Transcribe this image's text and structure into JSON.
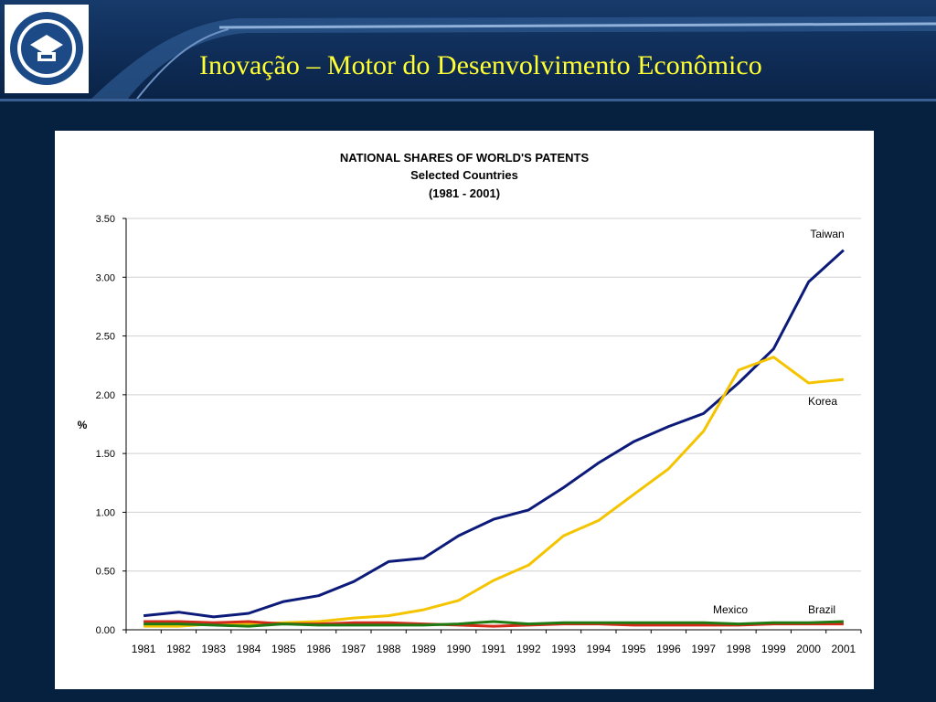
{
  "slide": {
    "title": "Inovação – Motor do Desenvolvimento Econômico"
  },
  "chart_data": {
    "type": "line",
    "title": "NATIONAL SHARES OF WORLD'S PATENTS",
    "subtitle": "Selected Countries",
    "subtitle2": "(1981 - 2001)",
    "xlabel": "",
    "ylabel": "%",
    "ylim": [
      0,
      3.5
    ],
    "yticks": [
      "0.00",
      "0.50",
      "1.00",
      "1.50",
      "2.00",
      "2.50",
      "3.00",
      "3.50"
    ],
    "x": [
      "1981",
      "1982",
      "1983",
      "1984",
      "1985",
      "1986",
      "1987",
      "1988",
      "1989",
      "1990",
      "1991",
      "1992",
      "1993",
      "1994",
      "1995",
      "1996",
      "1997",
      "1998",
      "1999",
      "2000",
      "2001"
    ],
    "grid": true,
    "series": [
      {
        "name": "Taiwan",
        "color": "#0c1a7a",
        "values": [
          0.12,
          0.15,
          0.11,
          0.14,
          0.24,
          0.29,
          0.41,
          0.58,
          0.61,
          0.8,
          0.94,
          1.02,
          1.21,
          1.42,
          1.6,
          1.73,
          1.84,
          2.1,
          2.39,
          2.96,
          3.23
        ]
      },
      {
        "name": "Korea",
        "color": "#f5c400",
        "values": [
          0.03,
          0.03,
          0.05,
          0.05,
          0.06,
          0.07,
          0.1,
          0.12,
          0.17,
          0.25,
          0.42,
          0.55,
          0.8,
          0.93,
          1.15,
          1.37,
          1.69,
          2.21,
          2.32,
          2.1,
          2.13
        ]
      },
      {
        "name": "Mexico",
        "color": "#d42a1a",
        "values": [
          0.07,
          0.07,
          0.06,
          0.07,
          0.05,
          0.05,
          0.06,
          0.06,
          0.05,
          0.04,
          0.03,
          0.04,
          0.05,
          0.05,
          0.04,
          0.04,
          0.04,
          0.04,
          0.05,
          0.05,
          0.05
        ]
      },
      {
        "name": "Brazil",
        "color": "#1f7a12",
        "values": [
          0.05,
          0.05,
          0.04,
          0.03,
          0.05,
          0.04,
          0.04,
          0.04,
          0.04,
          0.05,
          0.07,
          0.05,
          0.06,
          0.06,
          0.06,
          0.06,
          0.06,
          0.05,
          0.06,
          0.06,
          0.07
        ]
      }
    ],
    "annotations": [
      "Taiwan",
      "Korea",
      "Mexico",
      "Brazil"
    ]
  }
}
